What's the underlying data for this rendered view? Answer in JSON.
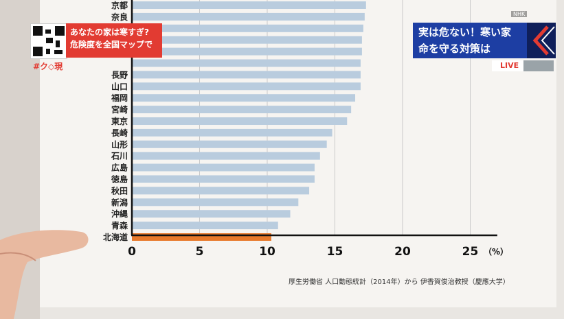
{
  "overlay": {
    "caption_line1": "あなたの家は寒すぎ?",
    "caption_line2": "危険度を全国マップで",
    "hashtag": "#ク◇現",
    "title_line1": "実は危ない！寒い家",
    "title_line2": "命を守る対策は",
    "live": "LIVE",
    "corner_label": "NHK"
  },
  "source_note": "厚生労働省 人口動態統計（2014年）から 伊香賀俊治教授（慶應大学）",
  "colors": {
    "bar_default": "#b9ccde",
    "bar_highlight": "#e8792b",
    "caption_red": "#e23b32",
    "title_blue": "#1d3ea3"
  },
  "chart_data": {
    "type": "bar",
    "orientation": "horizontal",
    "categories": [
      "京都",
      "奈良",
      "",
      "",
      "",
      "",
      "長野",
      "山口",
      "福岡",
      "宮崎",
      "東京",
      "長崎",
      "山形",
      "石川",
      "広島",
      "徳島",
      "秋田",
      "新潟",
      "沖縄",
      "青森",
      "北海道"
    ],
    "values": [
      17.3,
      17.2,
      17.1,
      17.0,
      17.0,
      16.9,
      16.9,
      16.9,
      16.5,
      16.2,
      15.9,
      14.8,
      14.4,
      13.9,
      13.5,
      13.5,
      13.1,
      12.3,
      11.7,
      10.8,
      10.3
    ],
    "highlight": "北海道",
    "xlim": [
      0,
      27
    ],
    "xticks": [
      "0",
      "5",
      "10",
      "15",
      "20",
      "25"
    ],
    "xunit": "（%）",
    "grid": true
  }
}
